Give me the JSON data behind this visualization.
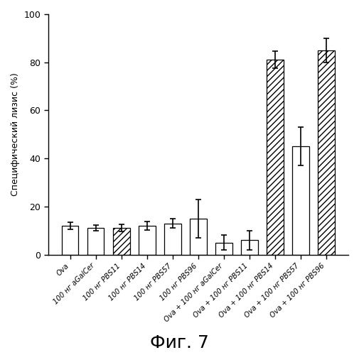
{
  "categories": [
    "Ova",
    "100 нг aGalCer",
    "100 нг PBS11",
    "100 нг PBS14",
    "100 нг PBS57",
    "100 нг PBS96",
    "Ova + 100 нг aGalCer",
    "Ova + 100 нг PBS11",
    "Ova + 100 нг PBS14",
    "Ova + 100 нг PBS57",
    "Ova + 100 нг PBS96"
  ],
  "values": [
    12,
    11,
    11,
    12,
    13,
    15,
    5,
    6,
    81,
    45,
    85
  ],
  "errors": [
    1.5,
    1.2,
    1.5,
    1.8,
    2.0,
    8.0,
    3.0,
    4.0,
    3.5,
    8.0,
    5.0
  ],
  "hatches": [
    "",
    "",
    "////",
    "",
    "",
    "",
    "",
    "",
    "////",
    "",
    "////"
  ],
  "bar_color": "#ffffff",
  "bar_edge_color": "#000000",
  "ylabel": "Специфический лизис (%)",
  "ylim": [
    0,
    100
  ],
  "yticks": [
    0,
    20,
    40,
    60,
    80,
    100
  ],
  "figure_label": "Фиг. 7",
  "figure_label_fontsize": 18
}
